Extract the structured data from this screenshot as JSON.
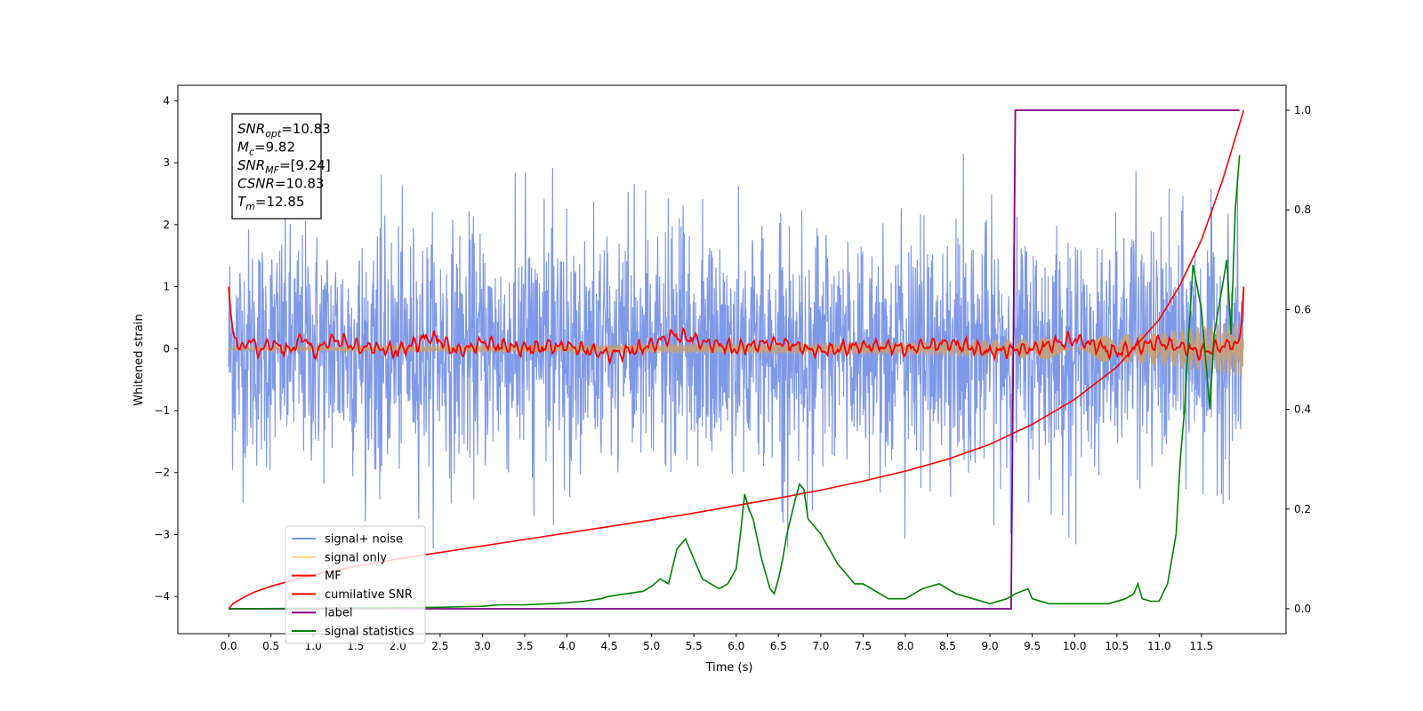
{
  "chart_data": {
    "type": "line",
    "xlabel": "Time (s)",
    "ylabel": "Whitened strain",
    "xlim": [
      -0.6,
      12.5
    ],
    "ylim": [
      -4.6,
      4.25
    ],
    "y2lim": [
      -0.05,
      1.05
    ],
    "xticks": [
      "0.0",
      "0.5",
      "1.0",
      "1.5",
      "2.0",
      "2.5",
      "3.0",
      "3.5",
      "4.0",
      "4.5",
      "5.0",
      "5.5",
      "6.0",
      "6.5",
      "7.0",
      "7.5",
      "8.0",
      "8.5",
      "9.0",
      "9.5",
      "10.0",
      "10.5",
      "11.0",
      "11.5"
    ],
    "yticks": [
      "4",
      "3",
      "2",
      "1",
      "0",
      "−1",
      "−2",
      "−3",
      "−4"
    ],
    "y2ticks": [
      "1.0",
      "0.8",
      "0.6",
      "0.4",
      "0.2",
      "0.0"
    ],
    "annotation": {
      "lines": [
        {
          "sym": "SNR",
          "sub": "opt",
          "rest": "=10.83"
        },
        {
          "sym": "M",
          "sub": "c",
          "rest": "=9.82"
        },
        {
          "sym": "SNR",
          "sub": "MF",
          "rest": "=[9.24]"
        },
        {
          "sym": "CSNR",
          "sub": "",
          "rest": "=10.83"
        },
        {
          "sym": "T",
          "sub": "m",
          "rest": "=12.85"
        }
      ]
    },
    "legend": {
      "location": "lower-left",
      "entries": [
        {
          "label": "signal+ noise",
          "color": "#7893e8"
        },
        {
          "label": "signal only",
          "color": "#ffd080"
        },
        {
          "label": "MF",
          "color": "#ff0000"
        },
        {
          "label": "cumilative SNR",
          "color": "#ff0000"
        },
        {
          "label": "label",
          "color": "#800080"
        },
        {
          "label": "signal statistics",
          "color": "#008000"
        }
      ]
    },
    "series": [
      {
        "name": "signal+ noise",
        "axis": "left",
        "color": "#7893e8",
        "x_range": [
          0.0,
          12.0
        ],
        "envelope_upper_approx": [
          [
            0.0,
            2.3
          ],
          [
            1.0,
            2.5
          ],
          [
            2.0,
            2.9
          ],
          [
            3.0,
            2.7
          ],
          [
            4.0,
            3.2
          ],
          [
            5.0,
            3.3
          ],
          [
            5.8,
            3.0
          ],
          [
            6.7,
            3.4
          ],
          [
            7.4,
            3.1
          ],
          [
            8.3,
            3.3
          ],
          [
            9.2,
            3.2
          ],
          [
            10.0,
            2.8
          ],
          [
            11.0,
            3.1
          ],
          [
            11.9,
            3.1
          ]
        ],
        "envelope_lower_approx": [
          [
            0.0,
            -2.7
          ],
          [
            1.0,
            -2.5
          ],
          [
            2.0,
            -3.2
          ],
          [
            3.0,
            -3.3
          ],
          [
            4.0,
            -3.0
          ],
          [
            5.0,
            -3.1
          ],
          [
            6.0,
            -3.5
          ],
          [
            6.5,
            -3.8
          ],
          [
            7.0,
            -3.3
          ],
          [
            8.0,
            -3.1
          ],
          [
            9.0,
            -3.3
          ],
          [
            10.0,
            -3.3
          ],
          [
            11.0,
            -3.6
          ],
          [
            11.9,
            -3.5
          ]
        ]
      },
      {
        "name": "signal only",
        "axis": "left",
        "color": "#c8a070",
        "amplitude_envelope": [
          [
            0.0,
            0.03
          ],
          [
            3.0,
            0.06
          ],
          [
            6.0,
            0.08
          ],
          [
            8.0,
            0.11
          ],
          [
            9.5,
            0.16
          ],
          [
            10.5,
            0.22
          ],
          [
            11.0,
            0.27
          ],
          [
            11.5,
            0.36
          ],
          [
            12.0,
            0.48
          ]
        ]
      },
      {
        "name": "MF",
        "axis": "left",
        "color": "#ff0000",
        "x": [
          0.0,
          0.03,
          0.06,
          0.1,
          0.15,
          0.25,
          0.35,
          0.5,
          0.7,
          0.9,
          1.0,
          1.2,
          1.5,
          2.0,
          2.4,
          2.7,
          3.0,
          3.5,
          4.0,
          4.5,
          5.0,
          5.3,
          5.6,
          6.0,
          6.5,
          7.0,
          7.5,
          8.0,
          8.5,
          9.0,
          9.5,
          10.0,
          10.5,
          11.0,
          11.5,
          11.8,
          11.95,
          11.98,
          12.0
        ],
        "y": [
          1.0,
          0.5,
          0.2,
          0.15,
          -0.05,
          0.15,
          -0.05,
          0.1,
          -0.05,
          0.2,
          -0.1,
          0.15,
          0.05,
          -0.05,
          0.2,
          -0.05,
          0.1,
          0.0,
          0.05,
          -0.1,
          0.05,
          0.22,
          0.1,
          0.0,
          0.1,
          -0.05,
          0.05,
          0.0,
          0.1,
          -0.05,
          0.0,
          0.15,
          -0.05,
          0.1,
          -0.05,
          0.05,
          0.1,
          0.5,
          1.0
        ]
      },
      {
        "name": "cumilative SNR",
        "axis": "right",
        "color": "#ff0000",
        "x": [
          0.0,
          0.05,
          0.1,
          0.2,
          0.3,
          0.5,
          0.75,
          1.0,
          1.5,
          2.0,
          2.5,
          3.0,
          3.5,
          4.0,
          4.5,
          5.0,
          5.5,
          6.0,
          6.5,
          7.0,
          7.5,
          8.0,
          8.5,
          9.0,
          9.5,
          10.0,
          10.5,
          11.0,
          11.25,
          11.5,
          11.75,
          12.0
        ],
        "y": [
          0.0,
          0.01,
          0.015,
          0.025,
          0.033,
          0.045,
          0.057,
          0.068,
          0.085,
          0.1,
          0.113,
          0.126,
          0.139,
          0.152,
          0.165,
          0.178,
          0.192,
          0.207,
          0.222,
          0.238,
          0.256,
          0.276,
          0.3,
          0.33,
          0.37,
          0.42,
          0.485,
          0.58,
          0.65,
          0.74,
          0.86,
          1.0
        ]
      },
      {
        "name": "label",
        "axis": "right",
        "color": "#800080",
        "x": [
          0.0,
          9.25,
          9.3,
          11.95
        ],
        "y": [
          0.0,
          0.0,
          1.0,
          1.0
        ]
      },
      {
        "name": "signal statistics",
        "axis": "right",
        "color": "#008000",
        "x": [
          0.0,
          1.0,
          2.0,
          2.5,
          3.0,
          3.2,
          3.5,
          3.8,
          4.0,
          4.2,
          4.4,
          4.5,
          4.7,
          4.9,
          5.0,
          5.1,
          5.2,
          5.3,
          5.4,
          5.5,
          5.6,
          5.7,
          5.8,
          5.9,
          6.0,
          6.05,
          6.1,
          6.15,
          6.2,
          6.3,
          6.4,
          6.45,
          6.5,
          6.55,
          6.6,
          6.7,
          6.75,
          6.8,
          6.85,
          6.9,
          7.0,
          7.1,
          7.2,
          7.4,
          7.5,
          7.6,
          7.8,
          8.0,
          8.2,
          8.4,
          8.5,
          8.6,
          8.8,
          9.0,
          9.2,
          9.3,
          9.45,
          9.5,
          9.7,
          10.0,
          10.2,
          10.4,
          10.6,
          10.7,
          10.75,
          10.8,
          10.9,
          11.0,
          11.1,
          11.2,
          11.25,
          11.3,
          11.35,
          11.4,
          11.5,
          11.55,
          11.6,
          11.65,
          11.7,
          11.75,
          11.8,
          11.85,
          11.9,
          11.95
        ],
        "y": [
          0.0,
          0.001,
          0.002,
          0.003,
          0.005,
          0.008,
          0.008,
          0.01,
          0.012,
          0.015,
          0.02,
          0.025,
          0.03,
          0.035,
          0.045,
          0.06,
          0.05,
          0.12,
          0.14,
          0.1,
          0.06,
          0.05,
          0.04,
          0.05,
          0.08,
          0.15,
          0.23,
          0.2,
          0.18,
          0.1,
          0.04,
          0.03,
          0.06,
          0.1,
          0.15,
          0.22,
          0.25,
          0.24,
          0.18,
          0.17,
          0.15,
          0.12,
          0.09,
          0.05,
          0.05,
          0.04,
          0.02,
          0.02,
          0.04,
          0.05,
          0.04,
          0.03,
          0.02,
          0.01,
          0.02,
          0.03,
          0.04,
          0.02,
          0.01,
          0.01,
          0.01,
          0.01,
          0.02,
          0.03,
          0.05,
          0.02,
          0.015,
          0.015,
          0.05,
          0.15,
          0.3,
          0.4,
          0.55,
          0.69,
          0.6,
          0.5,
          0.4,
          0.55,
          0.6,
          0.65,
          0.7,
          0.55,
          0.8,
          0.91
        ]
      }
    ]
  }
}
